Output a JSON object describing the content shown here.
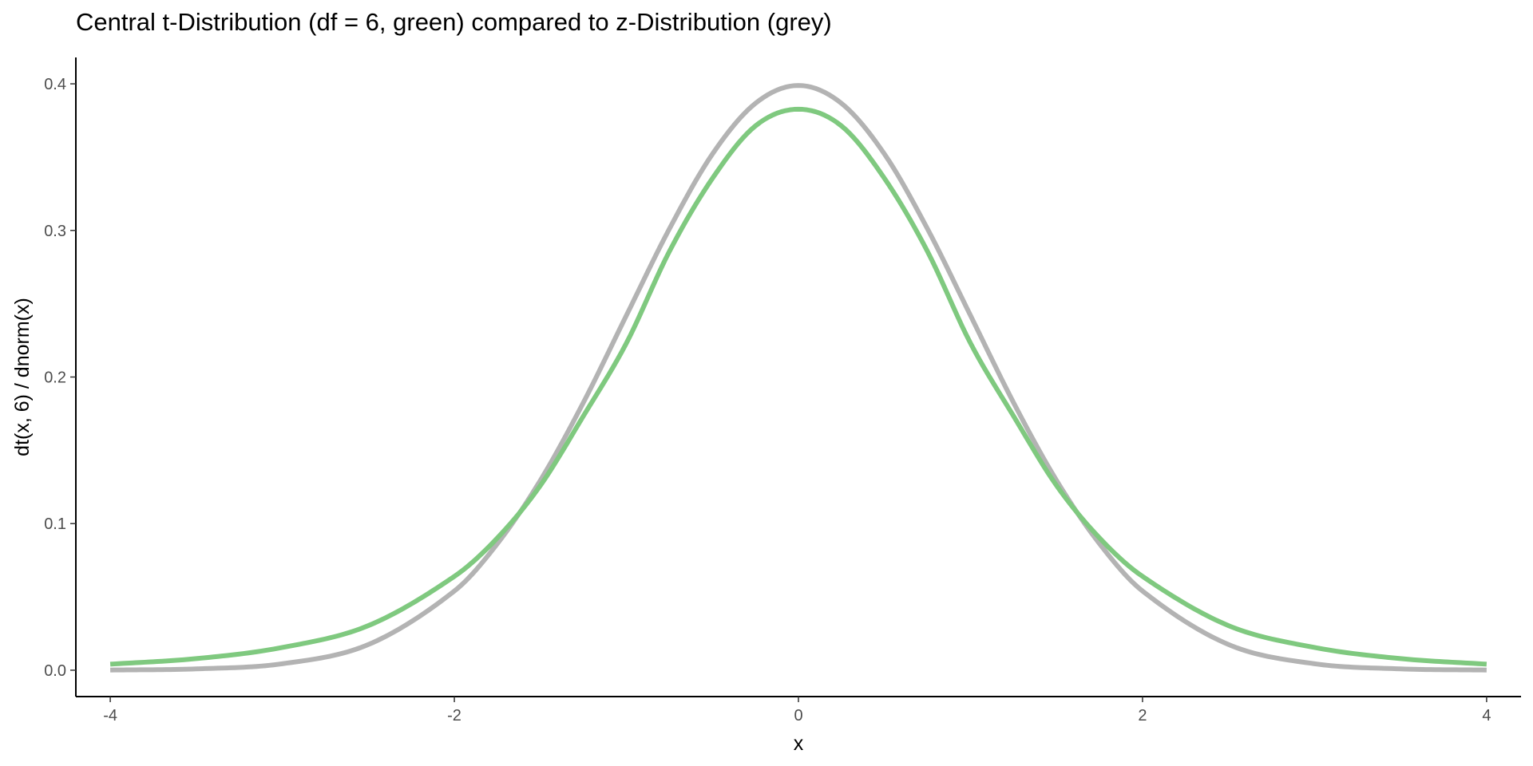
{
  "chart_data": {
    "type": "line",
    "title": "Central t-Distribution (df = 6, green) compared to z-Distribution (grey)",
    "xlabel": "x",
    "ylabel": "dt(x, 6) / dnorm(x)",
    "xlim": [
      -4.2,
      4.2
    ],
    "ylim": [
      -0.018,
      0.418
    ],
    "x_ticks": [
      -4,
      -2,
      0,
      2,
      4
    ],
    "x_tick_labels": [
      "-4",
      "-2",
      "0",
      "2",
      "4"
    ],
    "y_ticks": [
      0.0,
      0.1,
      0.2,
      0.3,
      0.4
    ],
    "y_tick_labels": [
      "0.0",
      "0.1",
      "0.2",
      "0.3",
      "0.4"
    ],
    "grid": false,
    "legend": "none",
    "x": [
      -4,
      -3.5,
      -3,
      -2.5,
      -2,
      -1.75,
      -1.5,
      -1.25,
      -1,
      -0.75,
      -0.5,
      -0.25,
      0,
      0.25,
      0.5,
      0.75,
      1,
      1.25,
      1.5,
      1.75,
      2,
      2.5,
      3,
      3.5,
      4
    ],
    "series": [
      {
        "color": "#b3b3b3",
        "values": [
          0.0001,
          0.0009,
          0.0044,
          0.0175,
          0.054,
          0.0863,
          0.1295,
          0.1826,
          0.242,
          0.3011,
          0.3521,
          0.3867,
          0.3989,
          0.3867,
          0.3521,
          0.3011,
          0.242,
          0.1826,
          0.1295,
          0.0863,
          0.054,
          0.0175,
          0.0044,
          0.0009,
          0.0001
        ]
      },
      {
        "color": "#7fc97f",
        "values": [
          0.0041,
          0.0079,
          0.0155,
          0.0304,
          0.064,
          0.0902,
          0.126,
          0.1734,
          0.2231,
          0.2857,
          0.3355,
          0.3713,
          0.3827,
          0.3713,
          0.3355,
          0.2857,
          0.2231,
          0.1734,
          0.126,
          0.0902,
          0.064,
          0.0304,
          0.0155,
          0.0079,
          0.0041
        ]
      }
    ]
  }
}
